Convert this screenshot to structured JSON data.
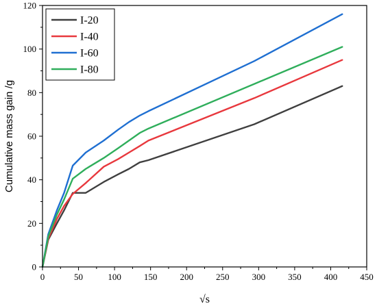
{
  "chart_data": {
    "type": "line",
    "xlabel": "√s",
    "ylabel": "Cumulative mass gain /g",
    "xlim": [
      0,
      450
    ],
    "ylim": [
      0,
      120
    ],
    "xticks": [
      0,
      50,
      100,
      150,
      200,
      250,
      300,
      350,
      400,
      450
    ],
    "yticks": [
      0,
      20,
      40,
      60,
      80,
      100,
      120
    ],
    "grid": false,
    "legend_position": "top-left",
    "series": [
      {
        "name": "I-20",
        "color": "#3f3f3f",
        "x": [
          0,
          8,
          20,
          30,
          42,
          60,
          85,
          105,
          120,
          135,
          147,
          294,
          416
        ],
        "y": [
          0,
          12.5,
          20,
          26,
          34,
          34,
          39,
          42.5,
          45,
          48,
          49,
          65.5,
          83
        ]
      },
      {
        "name": "I-40",
        "color": "#e8383d",
        "x": [
          0,
          8,
          20,
          30,
          42,
          60,
          85,
          105,
          120,
          135,
          147,
          294,
          416
        ],
        "y": [
          0,
          13,
          22,
          28,
          33.5,
          38.5,
          46,
          49.5,
          52.5,
          55.5,
          58,
          77.5,
          95
        ]
      },
      {
        "name": "I-60",
        "color": "#1f6fd1",
        "x": [
          0,
          8,
          20,
          30,
          42,
          60,
          85,
          105,
          120,
          135,
          147,
          294,
          416
        ],
        "y": [
          0,
          15,
          26,
          34,
          46.5,
          52.5,
          58,
          63,
          66.5,
          69.5,
          71.5,
          94.5,
          116
        ]
      },
      {
        "name": "I-80",
        "color": "#2fae5b",
        "x": [
          0,
          8,
          20,
          30,
          42,
          60,
          85,
          105,
          120,
          135,
          147,
          294,
          416
        ],
        "y": [
          0,
          14,
          24,
          31,
          40.5,
          45,
          50,
          54.5,
          58,
          61.5,
          63.5,
          84,
          101
        ]
      }
    ]
  }
}
